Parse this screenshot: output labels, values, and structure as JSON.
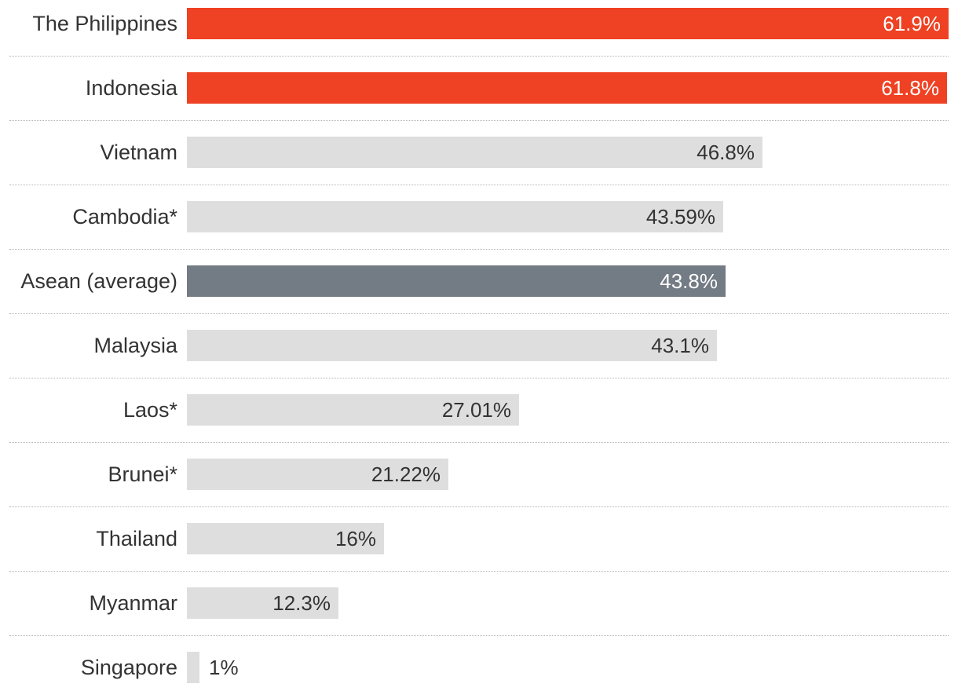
{
  "chart_data": {
    "type": "bar",
    "orientation": "horizontal",
    "categories": [
      "The Philippines",
      "Indonesia",
      "Vietnam",
      "Cambodia*",
      "Asean (average)",
      "Malaysia",
      "Laos*",
      "Brunei*",
      "Thailand",
      "Myanmar",
      "Singapore"
    ],
    "values": [
      61.9,
      61.8,
      46.8,
      43.59,
      43.8,
      43.1,
      27.01,
      21.22,
      16,
      12.3,
      1
    ],
    "value_labels": [
      "61.9%",
      "61.8%",
      "46.8%",
      "43.59%",
      "43.8%",
      "43.1%",
      "27.01%",
      "21.22%",
      "16%",
      "12.3%",
      "1%"
    ],
    "bar_colors": [
      "#ef4123",
      "#ef4123",
      "#dedede",
      "#dedede",
      "#737b84",
      "#dedede",
      "#dedede",
      "#dedede",
      "#dedede",
      "#dedede",
      "#dedede"
    ],
    "value_label_colors": [
      "#ffffff",
      "#ffffff",
      "#333333",
      "#333333",
      "#ffffff",
      "#333333",
      "#333333",
      "#333333",
      "#333333",
      "#333333",
      "#333333"
    ],
    "xlim": [
      0,
      61.9
    ],
    "grid": false,
    "legend": "none"
  }
}
